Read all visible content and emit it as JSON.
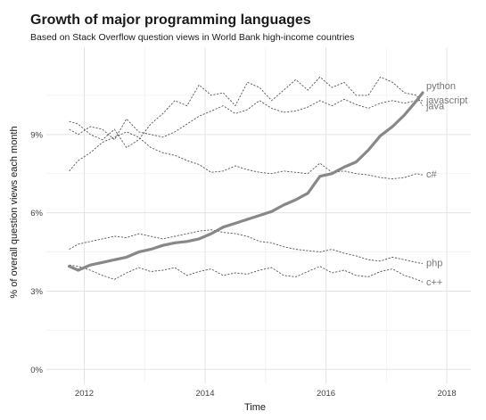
{
  "chart_data": {
    "type": "line",
    "title": "Growth of major programming languages",
    "subtitle": "Based on Stack Overflow question views in World Bank high-income countries",
    "xlabel": "Time",
    "ylabel": "% of overall question views each month",
    "xlim": [
      2011.55,
      2018.25
    ],
    "ylim": [
      -0.4,
      12.0
    ],
    "x_ticks": [
      {
        "value": 2012,
        "label": "2012"
      },
      {
        "value": 2014,
        "label": "2014"
      },
      {
        "value": 2016,
        "label": "2016"
      },
      {
        "value": 2018,
        "label": "2018"
      }
    ],
    "y_ticks": [
      {
        "value": 0,
        "label": "0%"
      },
      {
        "value": 3,
        "label": "3%"
      },
      {
        "value": 6,
        "label": "6%"
      },
      {
        "value": 9,
        "label": "9%"
      }
    ],
    "grid": true,
    "legend": "direct labels at line ends",
    "colors": {
      "highlight": "#888888",
      "other": "#555555",
      "label": "#777777"
    },
    "series": [
      {
        "name": "python",
        "highlight": true,
        "x": [
          2011.75,
          2011.9,
          2012.1,
          2012.3,
          2012.5,
          2012.7,
          2012.9,
          2013.1,
          2013.3,
          2013.5,
          2013.7,
          2013.9,
          2014.1,
          2014.3,
          2014.5,
          2014.7,
          2014.9,
          2015.1,
          2015.3,
          2015.5,
          2015.7,
          2015.9,
          2016.1,
          2016.3,
          2016.5,
          2016.7,
          2016.9,
          2017.1,
          2017.3,
          2017.5,
          2017.6
        ],
        "y": [
          3.95,
          3.8,
          4.0,
          4.1,
          4.2,
          4.3,
          4.5,
          4.6,
          4.75,
          4.85,
          4.9,
          5.0,
          5.2,
          5.45,
          5.6,
          5.75,
          5.9,
          6.05,
          6.3,
          6.5,
          6.75,
          7.4,
          7.5,
          7.75,
          7.95,
          8.4,
          8.95,
          9.3,
          9.75,
          10.3,
          10.6
        ]
      },
      {
        "name": "javascript",
        "highlight": false,
        "x": [
          2011.75,
          2011.9,
          2012.1,
          2012.3,
          2012.5,
          2012.7,
          2012.9,
          2013.1,
          2013.3,
          2013.5,
          2013.7,
          2013.9,
          2014.1,
          2014.3,
          2014.5,
          2014.7,
          2014.9,
          2015.1,
          2015.3,
          2015.5,
          2015.7,
          2015.9,
          2016.1,
          2016.3,
          2016.5,
          2016.7,
          2016.9,
          2017.1,
          2017.3,
          2017.5,
          2017.6
        ],
        "y": [
          9.2,
          9.0,
          9.3,
          9.2,
          8.8,
          9.6,
          9.1,
          9.0,
          8.9,
          9.1,
          9.4,
          9.7,
          9.9,
          10.1,
          9.8,
          9.95,
          10.3,
          10.0,
          9.85,
          9.9,
          10.05,
          10.3,
          10.1,
          10.35,
          10.15,
          10.0,
          10.2,
          10.3,
          10.2,
          10.3,
          10.3
        ]
      },
      {
        "name": "java",
        "highlight": false,
        "x": [
          2011.75,
          2011.9,
          2012.1,
          2012.3,
          2012.5,
          2012.7,
          2012.9,
          2013.1,
          2013.3,
          2013.5,
          2013.7,
          2013.9,
          2014.1,
          2014.3,
          2014.5,
          2014.7,
          2014.9,
          2015.1,
          2015.3,
          2015.5,
          2015.7,
          2015.9,
          2016.1,
          2016.3,
          2016.5,
          2016.7,
          2016.9,
          2017.1,
          2017.3,
          2017.5,
          2017.6
        ],
        "y": [
          9.5,
          9.4,
          9.0,
          8.8,
          9.2,
          8.5,
          8.8,
          9.4,
          9.8,
          10.3,
          10.1,
          10.9,
          10.5,
          10.6,
          10.1,
          11.0,
          10.8,
          10.3,
          10.7,
          11.1,
          10.7,
          11.2,
          10.8,
          11.0,
          10.5,
          10.5,
          11.2,
          11.0,
          10.6,
          10.5,
          10.1
        ]
      },
      {
        "name": "c#",
        "highlight": false,
        "x": [
          2011.75,
          2011.9,
          2012.1,
          2012.3,
          2012.5,
          2012.7,
          2012.9,
          2013.1,
          2013.3,
          2013.5,
          2013.7,
          2013.9,
          2014.1,
          2014.3,
          2014.5,
          2014.7,
          2014.9,
          2015.1,
          2015.3,
          2015.5,
          2015.7,
          2015.9,
          2016.1,
          2016.3,
          2016.5,
          2016.7,
          2016.9,
          2017.1,
          2017.3,
          2017.5,
          2017.6
        ],
        "y": [
          7.6,
          8.0,
          8.3,
          8.7,
          8.9,
          9.1,
          8.9,
          8.5,
          8.3,
          8.2,
          8.0,
          7.85,
          7.55,
          7.6,
          7.8,
          7.65,
          7.55,
          7.5,
          7.6,
          7.55,
          7.5,
          7.9,
          7.55,
          7.6,
          7.5,
          7.45,
          7.35,
          7.3,
          7.35,
          7.5,
          7.45
        ]
      },
      {
        "name": "php",
        "highlight": false,
        "x": [
          2011.75,
          2011.9,
          2012.1,
          2012.3,
          2012.5,
          2012.7,
          2012.9,
          2013.1,
          2013.3,
          2013.5,
          2013.7,
          2013.9,
          2014.1,
          2014.3,
          2014.5,
          2014.7,
          2014.9,
          2015.1,
          2015.3,
          2015.5,
          2015.7,
          2015.9,
          2016.1,
          2016.3,
          2016.5,
          2016.7,
          2016.9,
          2017.1,
          2017.3,
          2017.5,
          2017.6
        ],
        "y": [
          4.6,
          4.8,
          4.9,
          5.0,
          5.1,
          5.05,
          5.2,
          5.1,
          5.0,
          5.1,
          5.2,
          5.3,
          5.35,
          5.25,
          5.2,
          5.1,
          4.9,
          4.85,
          4.7,
          4.6,
          4.55,
          4.5,
          4.6,
          4.45,
          4.35,
          4.2,
          4.15,
          4.3,
          4.2,
          4.1,
          4.05
        ]
      },
      {
        "name": "c++",
        "highlight": false,
        "x": [
          2011.75,
          2011.9,
          2012.1,
          2012.3,
          2012.5,
          2012.7,
          2012.9,
          2013.1,
          2013.3,
          2013.5,
          2013.7,
          2013.9,
          2014.1,
          2014.3,
          2014.5,
          2014.7,
          2014.9,
          2015.1,
          2015.3,
          2015.5,
          2015.7,
          2015.9,
          2016.1,
          2016.3,
          2016.5,
          2016.7,
          2016.9,
          2017.1,
          2017.3,
          2017.5,
          2017.6
        ],
        "y": [
          4.0,
          3.95,
          3.8,
          3.6,
          3.45,
          3.7,
          3.9,
          3.75,
          3.8,
          3.9,
          3.6,
          3.75,
          3.85,
          3.6,
          3.7,
          3.65,
          3.8,
          3.9,
          3.6,
          3.55,
          3.75,
          3.95,
          3.7,
          3.8,
          3.6,
          3.55,
          3.75,
          3.85,
          3.6,
          3.45,
          3.35
        ]
      }
    ]
  }
}
